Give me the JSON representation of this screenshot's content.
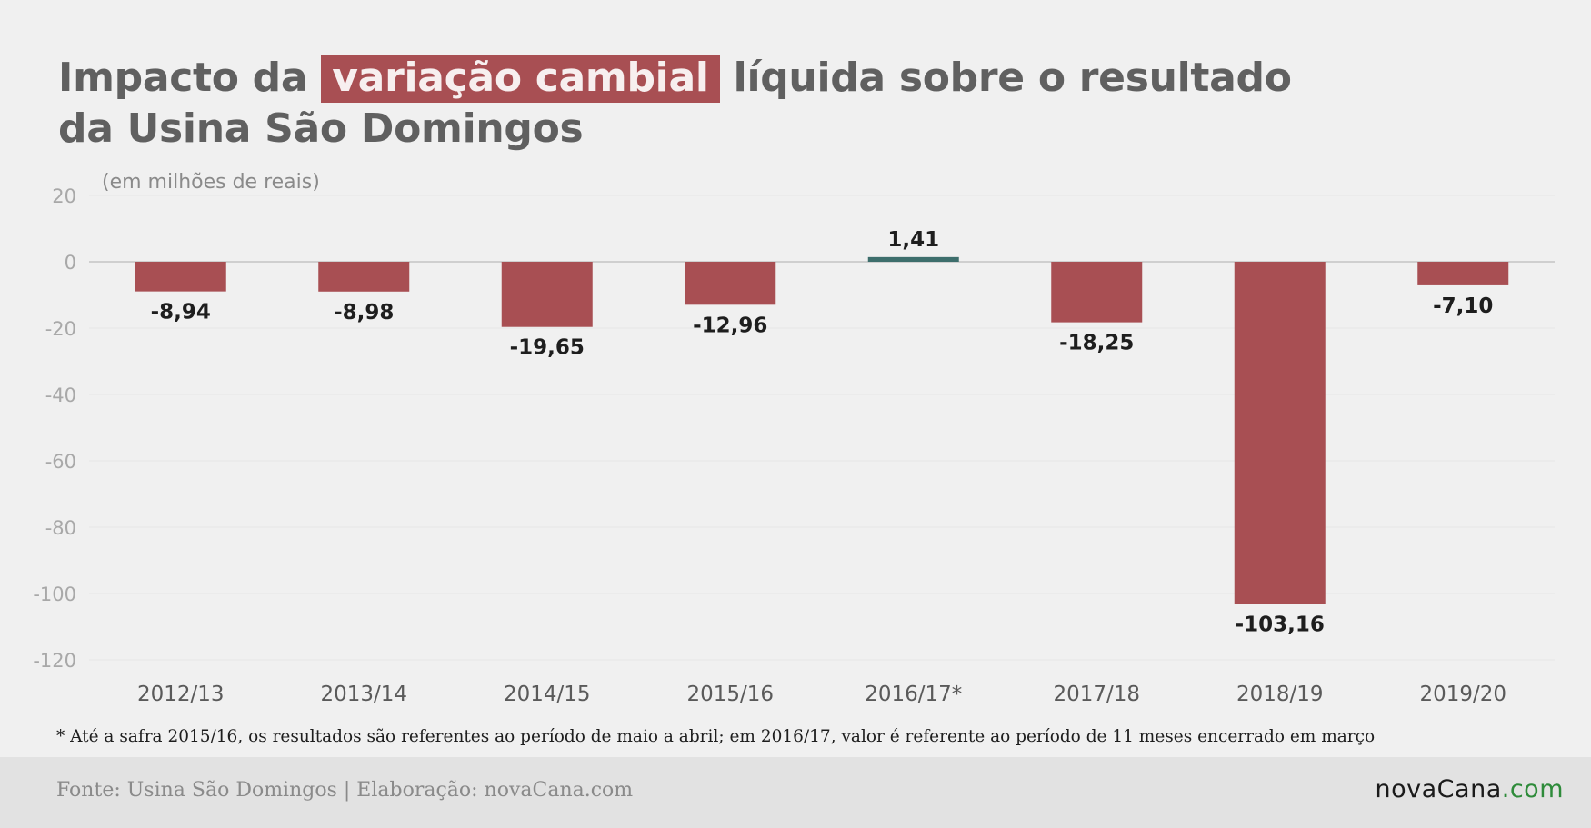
{
  "title": {
    "before": "Impacto da",
    "highlight": "variação cambial",
    "line1_after": "líquida sobre o resultado",
    "line2": "da Usina São Domingos"
  },
  "chart_data": {
    "type": "bar",
    "subtitle": "(em milhões de reais)",
    "categories": [
      "2012/13",
      "2013/14",
      "2014/15",
      "2015/16",
      "2016/17*",
      "2017/18",
      "2018/19",
      "2019/20"
    ],
    "values": [
      -8.94,
      -8.98,
      -19.65,
      -12.96,
      1.41,
      -18.25,
      -103.16,
      -7.1
    ],
    "value_labels": [
      "-8,94",
      "-8,98",
      "-19,65",
      "-12,96",
      "1,41",
      "-18,25",
      "-103,16",
      "-7,10"
    ],
    "ylim": [
      -120,
      20
    ],
    "yticks": [
      20,
      0,
      -20,
      -40,
      -60,
      -80,
      -100,
      -120
    ],
    "grid": true,
    "colors": {
      "negative": "#a84f53",
      "positive": "#3d6e6c",
      "grid": "#e6e6e6",
      "zero_line": "#cfcfcf"
    }
  },
  "footnote": "* Até a safra 2015/16, os resultados são referentes ao período de maio a abril; em 2016/17, valor é referente ao período de 11 meses encerrado em março",
  "footer": {
    "source": "Fonte: Usina São Domingos | Elaboração: novaCana.com",
    "logo_main": "novaCana",
    "logo_suffix": ".com"
  }
}
